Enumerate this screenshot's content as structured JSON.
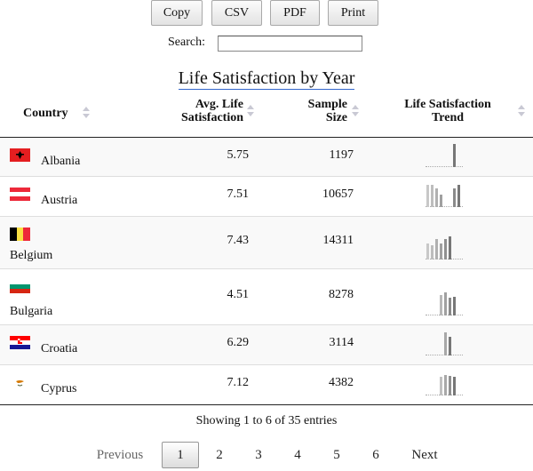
{
  "toolbar": {
    "copy": "Copy",
    "csv": "CSV",
    "pdf": "PDF",
    "print": "Print"
  },
  "search": {
    "label": "Search:",
    "value": ""
  },
  "title": "Life Satisfaction by Year",
  "columns": {
    "country": "Country",
    "avg_l1": "Avg. Life",
    "avg_l2": "Satisfaction",
    "size_l1": "Sample",
    "size_l2": "Size",
    "trend_l1": "Life Satisfaction",
    "trend_l2": "Trend"
  },
  "rows": [
    {
      "country": "Albania",
      "avg": "5.75",
      "size": "1197",
      "flag": "albania",
      "trend": [
        0,
        0,
        0,
        0,
        0,
        0,
        1.0,
        0
      ],
      "trend_colors": [
        "#999",
        "#999",
        "#999",
        "#999",
        "#999",
        "#999",
        "#777",
        "#999"
      ]
    },
    {
      "country": "Austria",
      "avg": "7.51",
      "size": "10657",
      "flag": "austria",
      "trend": [
        0.95,
        0.95,
        0.8,
        0.55,
        0,
        0,
        0.8,
        0.95
      ],
      "trend_colors": [
        "#c8c8c8",
        "#bdbdbd",
        "#b0b0b0",
        "#a0a0a0",
        "#999",
        "#999",
        "#8a8a8a",
        "#777"
      ]
    },
    {
      "country": "Belgium",
      "avg": "7.43",
      "size": "14311",
      "flag": "belgium",
      "trend": [
        0.7,
        0.6,
        0.9,
        0.7,
        0.9,
        1.0,
        0,
        0
      ],
      "trend_colors": [
        "#c8c8c8",
        "#bdbdbd",
        "#b0b0b0",
        "#a0a0a0",
        "#909090",
        "#777",
        "#999",
        "#999"
      ]
    },
    {
      "country": "Bulgaria",
      "avg": "4.51",
      "size": "8278",
      "flag": "bulgaria",
      "trend": [
        0,
        0,
        0,
        0.9,
        1.0,
        0.75,
        0.8,
        0
      ],
      "trend_colors": [
        "#999",
        "#999",
        "#999",
        "#b8b8b8",
        "#a0a0a0",
        "#8a8a8a",
        "#777",
        "#999"
      ]
    },
    {
      "country": "Croatia",
      "avg": "6.29",
      "size": "3114",
      "flag": "croatia",
      "trend": [
        0,
        0,
        0,
        0,
        1.0,
        0.8,
        0,
        0
      ],
      "trend_colors": [
        "#999",
        "#999",
        "#999",
        "#999",
        "#a8a8a8",
        "#777",
        "#999",
        "#999"
      ]
    },
    {
      "country": "Cyprus",
      "avg": "7.12",
      "size": "4382",
      "flag": "cyprus",
      "trend": [
        0,
        0,
        0,
        0.8,
        0.9,
        0.85,
        0.8,
        0
      ],
      "trend_colors": [
        "#999",
        "#999",
        "#999",
        "#c0c0c0",
        "#a8a8a8",
        "#909090",
        "#777",
        "#999"
      ]
    }
  ],
  "info": "Showing 1 to 6 of 35 entries",
  "pagination": {
    "previous": "Previous",
    "pages": [
      "1",
      "2",
      "3",
      "4",
      "5",
      "6"
    ],
    "next": "Next",
    "current": "1"
  }
}
